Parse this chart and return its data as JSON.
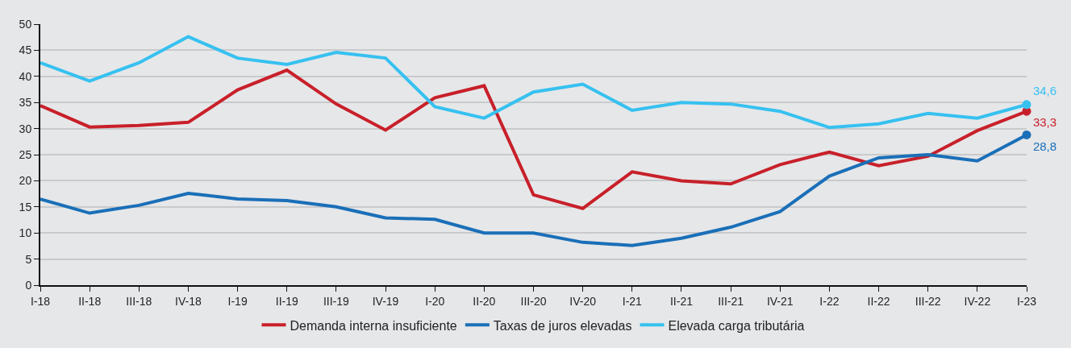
{
  "chart_data": {
    "type": "line",
    "categories": [
      "I-18",
      "II-18",
      "III-18",
      "IV-18",
      "I-19",
      "II-19",
      "III-19",
      "IV-19",
      "I-20",
      "II-20",
      "III-20",
      "IV-20",
      "I-21",
      "II-21",
      "III-21",
      "IV-21",
      "I-22",
      "II-22",
      "III-22",
      "IV-22",
      "I-23"
    ],
    "series": [
      {
        "name": "Demanda interna insuficiente",
        "color": "#c8202a",
        "values": [
          34.4,
          30.3,
          30.6,
          31.2,
          37.4,
          41.2,
          34.7,
          29.7,
          35.9,
          38.2,
          17.3,
          14.7,
          21.7,
          20.0,
          19.4,
          23.1,
          25.5,
          22.9,
          24.7,
          29.6,
          33.3
        ],
        "value_labels": [
          null,
          null,
          null,
          null,
          null,
          null,
          null,
          null,
          null,
          null,
          null,
          null,
          null,
          null,
          null,
          null,
          null,
          null,
          null,
          null,
          "33,3"
        ]
      },
      {
        "name": "Taxas de juros elevadas",
        "color": "#1a6fb8",
        "values": [
          16.5,
          13.8,
          15.3,
          17.6,
          16.5,
          16.2,
          15.0,
          12.9,
          12.6,
          10.0,
          10.0,
          8.2,
          7.6,
          9.0,
          11.1,
          14.1,
          20.9,
          24.4,
          25.0,
          23.8,
          28.8
        ],
        "value_labels": [
          null,
          null,
          null,
          null,
          null,
          null,
          null,
          null,
          null,
          null,
          null,
          null,
          null,
          null,
          null,
          null,
          null,
          null,
          null,
          null,
          "28,8"
        ]
      },
      {
        "name": "Elevada carga tributária",
        "color": "#36c1f0",
        "values": [
          42.6,
          39.1,
          42.6,
          47.6,
          43.5,
          42.3,
          44.6,
          43.5,
          34.2,
          32.0,
          37.0,
          38.5,
          33.5,
          35.0,
          34.7,
          33.3,
          30.2,
          30.9,
          32.9,
          32.0,
          34.6
        ],
        "value_labels": [
          null,
          null,
          null,
          null,
          null,
          null,
          null,
          null,
          null,
          null,
          null,
          null,
          null,
          null,
          null,
          null,
          null,
          null,
          null,
          null,
          "34,6"
        ]
      }
    ],
    "ylim": [
      0,
      50
    ],
    "yticks": [
      0,
      5,
      10,
      15,
      20,
      25,
      30,
      35,
      40,
      45,
      50
    ],
    "grid": "y",
    "legend": "bottom",
    "line_style": "solid"
  }
}
